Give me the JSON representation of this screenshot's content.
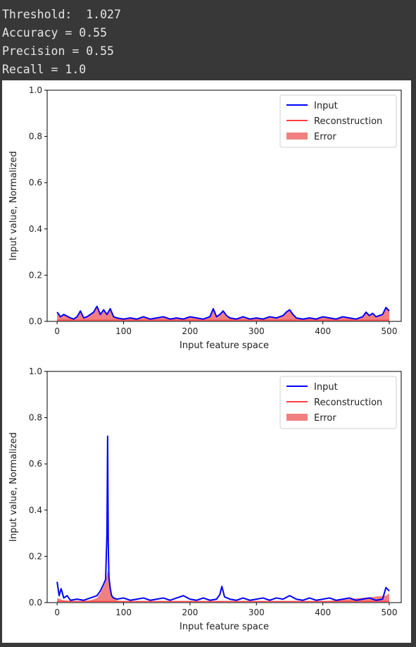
{
  "output": {
    "lines": [
      "Threshold:  1.027",
      "Accuracy = 0.55",
      "Precision = 0.55",
      "Recall = 1.0"
    ]
  },
  "chart_data": [
    {
      "type": "line",
      "xlabel": "Input feature space",
      "ylabel": "Input value, Normalized",
      "xlim": [
        -15,
        518
      ],
      "ylim": [
        0.0,
        1.0
      ],
      "xticks": [
        0,
        100,
        200,
        300,
        400,
        500
      ],
      "yticks": [
        0.0,
        0.2,
        0.4,
        0.6,
        0.8,
        1.0
      ],
      "legend_position": "top-right",
      "grid": false,
      "series": [
        {
          "name": "Input",
          "color": "#0000ff",
          "x": [
            0,
            5,
            10,
            20,
            25,
            30,
            35,
            40,
            45,
            50,
            55,
            60,
            65,
            70,
            75,
            80,
            85,
            90,
            100,
            110,
            120,
            130,
            140,
            150,
            160,
            170,
            180,
            190,
            200,
            210,
            220,
            230,
            235,
            240,
            245,
            250,
            255,
            260,
            270,
            280,
            290,
            300,
            310,
            320,
            330,
            340,
            345,
            350,
            355,
            360,
            370,
            380,
            390,
            400,
            410,
            420,
            430,
            440,
            450,
            460,
            465,
            470,
            475,
            480,
            490,
            495,
            500
          ],
          "values": [
            0.04,
            0.02,
            0.03,
            0.015,
            0.01,
            0.02,
            0.045,
            0.015,
            0.02,
            0.03,
            0.04,
            0.065,
            0.03,
            0.05,
            0.03,
            0.055,
            0.02,
            0.015,
            0.01,
            0.015,
            0.01,
            0.02,
            0.01,
            0.015,
            0.02,
            0.01,
            0.015,
            0.01,
            0.02,
            0.015,
            0.01,
            0.02,
            0.055,
            0.02,
            0.03,
            0.045,
            0.025,
            0.015,
            0.01,
            0.02,
            0.01,
            0.015,
            0.01,
            0.02,
            0.015,
            0.025,
            0.04,
            0.05,
            0.03,
            0.015,
            0.01,
            0.015,
            0.01,
            0.02,
            0.015,
            0.01,
            0.02,
            0.015,
            0.01,
            0.02,
            0.04,
            0.025,
            0.035,
            0.02,
            0.03,
            0.06,
            0.045
          ]
        },
        {
          "name": "Reconstruction",
          "color": "#ff4040",
          "x": [
            0,
            250,
            500
          ],
          "values": [
            0.005,
            0.005,
            0.005
          ]
        },
        {
          "name": "Error",
          "color": "#f08080",
          "kind": "fill"
        }
      ]
    },
    {
      "type": "line",
      "xlabel": "Input feature space",
      "ylabel": "Input value, Normalized",
      "xlim": [
        -15,
        518
      ],
      "ylim": [
        0.0,
        1.0
      ],
      "xticks": [
        0,
        100,
        200,
        300,
        400,
        500
      ],
      "yticks": [
        0.0,
        0.2,
        0.4,
        0.6,
        0.8,
        1.0
      ],
      "legend_position": "top-right",
      "grid": false,
      "series": [
        {
          "name": "Input",
          "color": "#0000ff",
          "x": [
            0,
            3,
            6,
            10,
            15,
            20,
            30,
            40,
            50,
            60,
            65,
            70,
            73,
            75,
            76,
            77,
            78,
            80,
            82,
            85,
            90,
            100,
            110,
            120,
            130,
            140,
            150,
            160,
            170,
            180,
            190,
            200,
            210,
            220,
            230,
            240,
            245,
            248,
            252,
            260,
            270,
            280,
            290,
            300,
            310,
            320,
            330,
            340,
            350,
            360,
            370,
            380,
            390,
            400,
            410,
            420,
            430,
            440,
            450,
            460,
            470,
            480,
            490,
            495,
            500
          ],
          "values": [
            0.09,
            0.03,
            0.06,
            0.02,
            0.03,
            0.01,
            0.015,
            0.01,
            0.02,
            0.03,
            0.05,
            0.08,
            0.1,
            0.3,
            0.72,
            0.25,
            0.11,
            0.06,
            0.03,
            0.02,
            0.015,
            0.02,
            0.01,
            0.015,
            0.02,
            0.01,
            0.015,
            0.02,
            0.01,
            0.02,
            0.03,
            0.015,
            0.01,
            0.02,
            0.01,
            0.015,
            0.035,
            0.07,
            0.025,
            0.015,
            0.01,
            0.02,
            0.01,
            0.015,
            0.02,
            0.01,
            0.02,
            0.015,
            0.03,
            0.015,
            0.01,
            0.02,
            0.01,
            0.015,
            0.02,
            0.01,
            0.015,
            0.02,
            0.01,
            0.015,
            0.02,
            0.01,
            0.015,
            0.065,
            0.05
          ]
        },
        {
          "name": "Reconstruction",
          "color": "#ff4040",
          "x": [
            0,
            250,
            500
          ],
          "values": [
            0.005,
            0.005,
            0.005
          ]
        },
        {
          "name": "Error",
          "color": "#f08080",
          "kind": "fill",
          "x": [
            0,
            10,
            30,
            50,
            60,
            65,
            70,
            73,
            75,
            76,
            77,
            78,
            80,
            85,
            90,
            100,
            200,
            300,
            400,
            495,
            500
          ],
          "values": [
            0.02,
            0.01,
            0.005,
            0.01,
            0.02,
            0.04,
            0.07,
            0.09,
            0.12,
            0.14,
            0.12,
            0.09,
            0.05,
            0.02,
            0.01,
            0.005,
            0.005,
            0.005,
            0.005,
            0.03,
            0.04
          ]
        }
      ]
    }
  ]
}
